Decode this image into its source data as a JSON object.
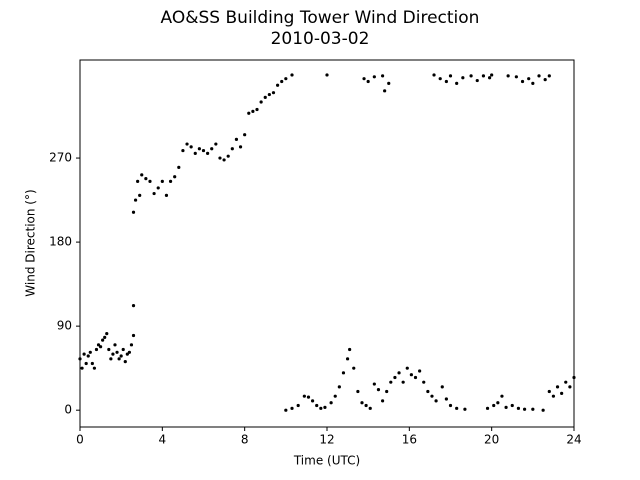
{
  "chart_data": {
    "type": "scatter",
    "title": "AO&SS Building Tower Wind Direction",
    "subtitle": "2010-03-02",
    "x_label": "Time (UTC)",
    "y_label": "Wind Direction (°)",
    "color": "#000000",
    "xlim": [
      0,
      24
    ],
    "xticks": [
      0,
      4,
      8,
      12,
      16,
      20,
      24
    ],
    "ylim": [
      -18,
      375
    ],
    "yticks": [
      0,
      90,
      180,
      270
    ],
    "x": [
      0,
      0.1,
      0.2,
      0.3,
      0.4,
      0.5,
      0.6,
      0.7,
      0.8,
      0.9,
      1.0,
      1.1,
      1.2,
      1.3,
      1.4,
      1.5,
      1.6,
      1.7,
      1.8,
      1.9,
      2.0,
      2.1,
      2.2,
      2.3,
      2.4,
      2.5,
      2.6,
      2.6,
      2.6,
      2.7,
      2.8,
      2.9,
      3.0,
      3.2,
      3.4,
      3.6,
      3.8,
      4.0,
      4.2,
      4.4,
      4.6,
      4.8,
      5.0,
      5.2,
      5.4,
      5.6,
      5.8,
      6.0,
      6.2,
      6.4,
      6.6,
      6.8,
      7.0,
      7.2,
      7.4,
      7.6,
      7.8,
      8.0,
      8.2,
      8.4,
      8.6,
      8.8,
      9.0,
      9.2,
      9.4,
      9.6,
      9.8,
      10.0,
      10.3,
      12.0,
      13.8,
      14.0,
      14.3,
      14.7,
      14.8,
      15.0,
      17.2,
      17.5,
      17.8,
      18.0,
      18.3,
      18.6,
      19.0,
      19.3,
      19.6,
      19.9,
      20.0,
      20.8,
      21.2,
      21.5,
      21.8,
      22.0,
      22.3,
      22.6,
      22.8,
      10.0,
      10.3,
      10.6,
      10.9,
      11.1,
      11.3,
      11.5,
      11.7,
      11.9,
      12.2,
      12.4,
      12.6,
      12.8,
      13.0,
      13.1,
      13.3,
      13.5,
      13.7,
      13.9,
      14.1,
      14.3,
      14.5,
      14.7,
      14.9,
      15.1,
      15.3,
      15.5,
      15.7,
      15.9,
      16.1,
      16.3,
      16.5,
      16.7,
      16.9,
      17.1,
      17.3,
      17.6,
      17.8,
      18.0,
      18.3,
      18.7,
      19.8,
      20.1,
      20.3,
      20.5,
      20.7,
      21.0,
      21.3,
      21.6,
      22.0,
      22.5,
      22.8,
      23.0,
      23.2,
      23.4,
      23.6,
      23.8,
      24.0
    ],
    "values": [
      55,
      45,
      60,
      50,
      58,
      62,
      50,
      45,
      65,
      70,
      68,
      75,
      78,
      82,
      65,
      55,
      60,
      70,
      62,
      55,
      58,
      65,
      52,
      60,
      62,
      70,
      80,
      112,
      212,
      225,
      245,
      230,
      252,
      248,
      245,
      232,
      238,
      245,
      230,
      245,
      250,
      260,
      278,
      285,
      282,
      275,
      280,
      278,
      275,
      280,
      285,
      270,
      268,
      272,
      280,
      290,
      282,
      295,
      318,
      320,
      322,
      330,
      335,
      338,
      340,
      348,
      352,
      355,
      359,
      359,
      355,
      352,
      357,
      358,
      342,
      350,
      359,
      355,
      352,
      358,
      350,
      356,
      358,
      353,
      358,
      356,
      359,
      358,
      357,
      352,
      355,
      350,
      358,
      354,
      358,
      0,
      2,
      5,
      15,
      14,
      10,
      5,
      2,
      3,
      8,
      15,
      25,
      40,
      55,
      65,
      45,
      20,
      8,
      5,
      2,
      28,
      22,
      10,
      20,
      30,
      35,
      40,
      30,
      45,
      38,
      35,
      42,
      30,
      20,
      15,
      10,
      25,
      12,
      5,
      2,
      1,
      2,
      5,
      8,
      15,
      3,
      5,
      2,
      1,
      1,
      0,
      20,
      15,
      25,
      18,
      30,
      25,
      35
    ]
  }
}
